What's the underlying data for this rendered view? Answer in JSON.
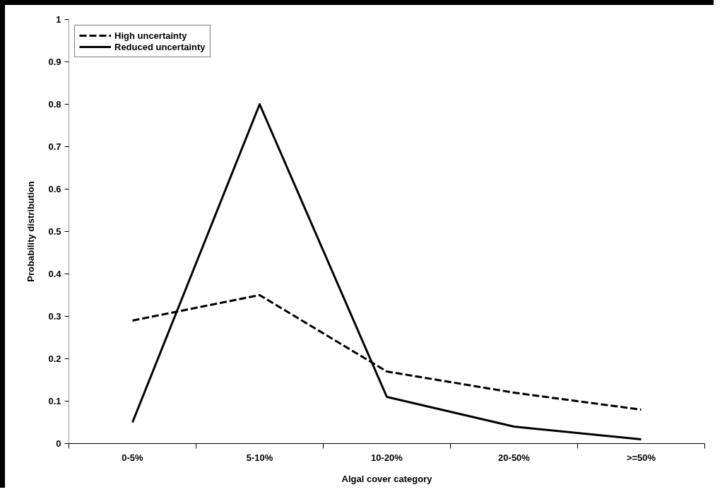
{
  "chart_data": {
    "type": "line",
    "xlabel": "Algal cover category",
    "ylabel": "Probability distribution",
    "categories": [
      "0-5%",
      "5-10%",
      "10-20%",
      "20-50%",
      ">=50%"
    ],
    "series": [
      {
        "name": "High uncertainty",
        "color": "#000000",
        "line_style": "dashed",
        "values": [
          0.29,
          0.35,
          0.17,
          0.12,
          0.08
        ]
      },
      {
        "name": "Reduced uncertainty",
        "color": "#000000",
        "line_style": "solid",
        "values": [
          0.05,
          0.8,
          0.11,
          0.04,
          0.01
        ]
      }
    ],
    "ylim": [
      0,
      1
    ],
    "yticks": [
      0,
      0.1,
      0.2,
      0.3,
      0.4,
      0.5,
      0.6,
      0.7,
      0.8,
      0.9,
      1
    ],
    "grid": false,
    "legend": "top left",
    "marker": "none"
  }
}
